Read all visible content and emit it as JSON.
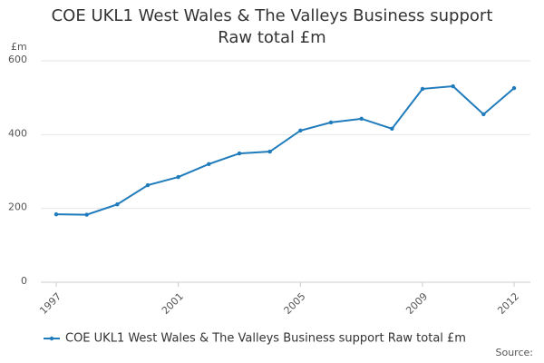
{
  "chart_data": {
    "type": "line",
    "title": "COE UKL1 West Wales & The Valleys Business support Raw total £m",
    "y_label": "£m",
    "source": "Source:",
    "x": [
      1997,
      1998,
      1999,
      2000,
      2001,
      2002,
      2003,
      2004,
      2005,
      2006,
      2007,
      2008,
      2009,
      2010,
      2011,
      2012
    ],
    "series": [
      {
        "name": "COE UKL1 West Wales & The Valleys Business support Raw total £m",
        "color": "#1f7bbb",
        "values": [
          184,
          183,
          211,
          263,
          285,
          320,
          349,
          354,
          411,
          433,
          443,
          416,
          524,
          531,
          455,
          526
        ]
      }
    ],
    "xlim": [
      1997,
      2012
    ],
    "xticks": [
      1997,
      2001,
      2005,
      2009,
      2012
    ],
    "ylim": [
      0,
      600
    ],
    "yticks": [
      0,
      200,
      400,
      600
    ],
    "grid": true
  }
}
